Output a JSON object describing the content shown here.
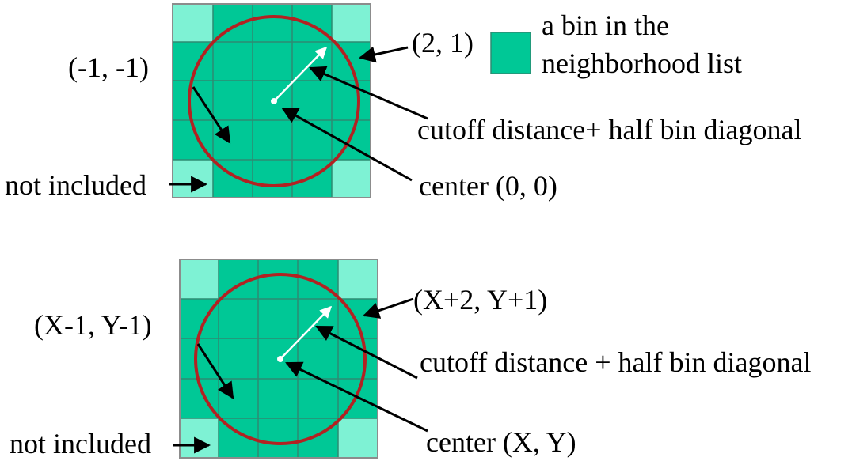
{
  "colors": {
    "included_bin": "#00C896",
    "excluded_bin": "#7EF2D4",
    "grid_line": "#2E8B72",
    "outer_border": "#8C8C8C",
    "circle": "#B22222",
    "arrow_black": "#000000",
    "arrow_white": "#FFFFFF",
    "legend_swatch": "#00C896"
  },
  "legend": {
    "line1": "a bin in the",
    "line2": "neighborhood list"
  },
  "diagram_top": {
    "label_corner": "(-1, -1)",
    "label_far": "(2, 1)",
    "label_radius": "cutoff distance+ half bin diagonal",
    "label_center": "center (0, 0)",
    "label_excluded": "not included"
  },
  "diagram_bottom": {
    "label_corner": "(X-1, Y-1)",
    "label_far": "(X+2, Y+1)",
    "label_radius": "cutoff distance + half bin diagonal",
    "label_center": "center (X, Y)",
    "label_excluded": "not included"
  }
}
